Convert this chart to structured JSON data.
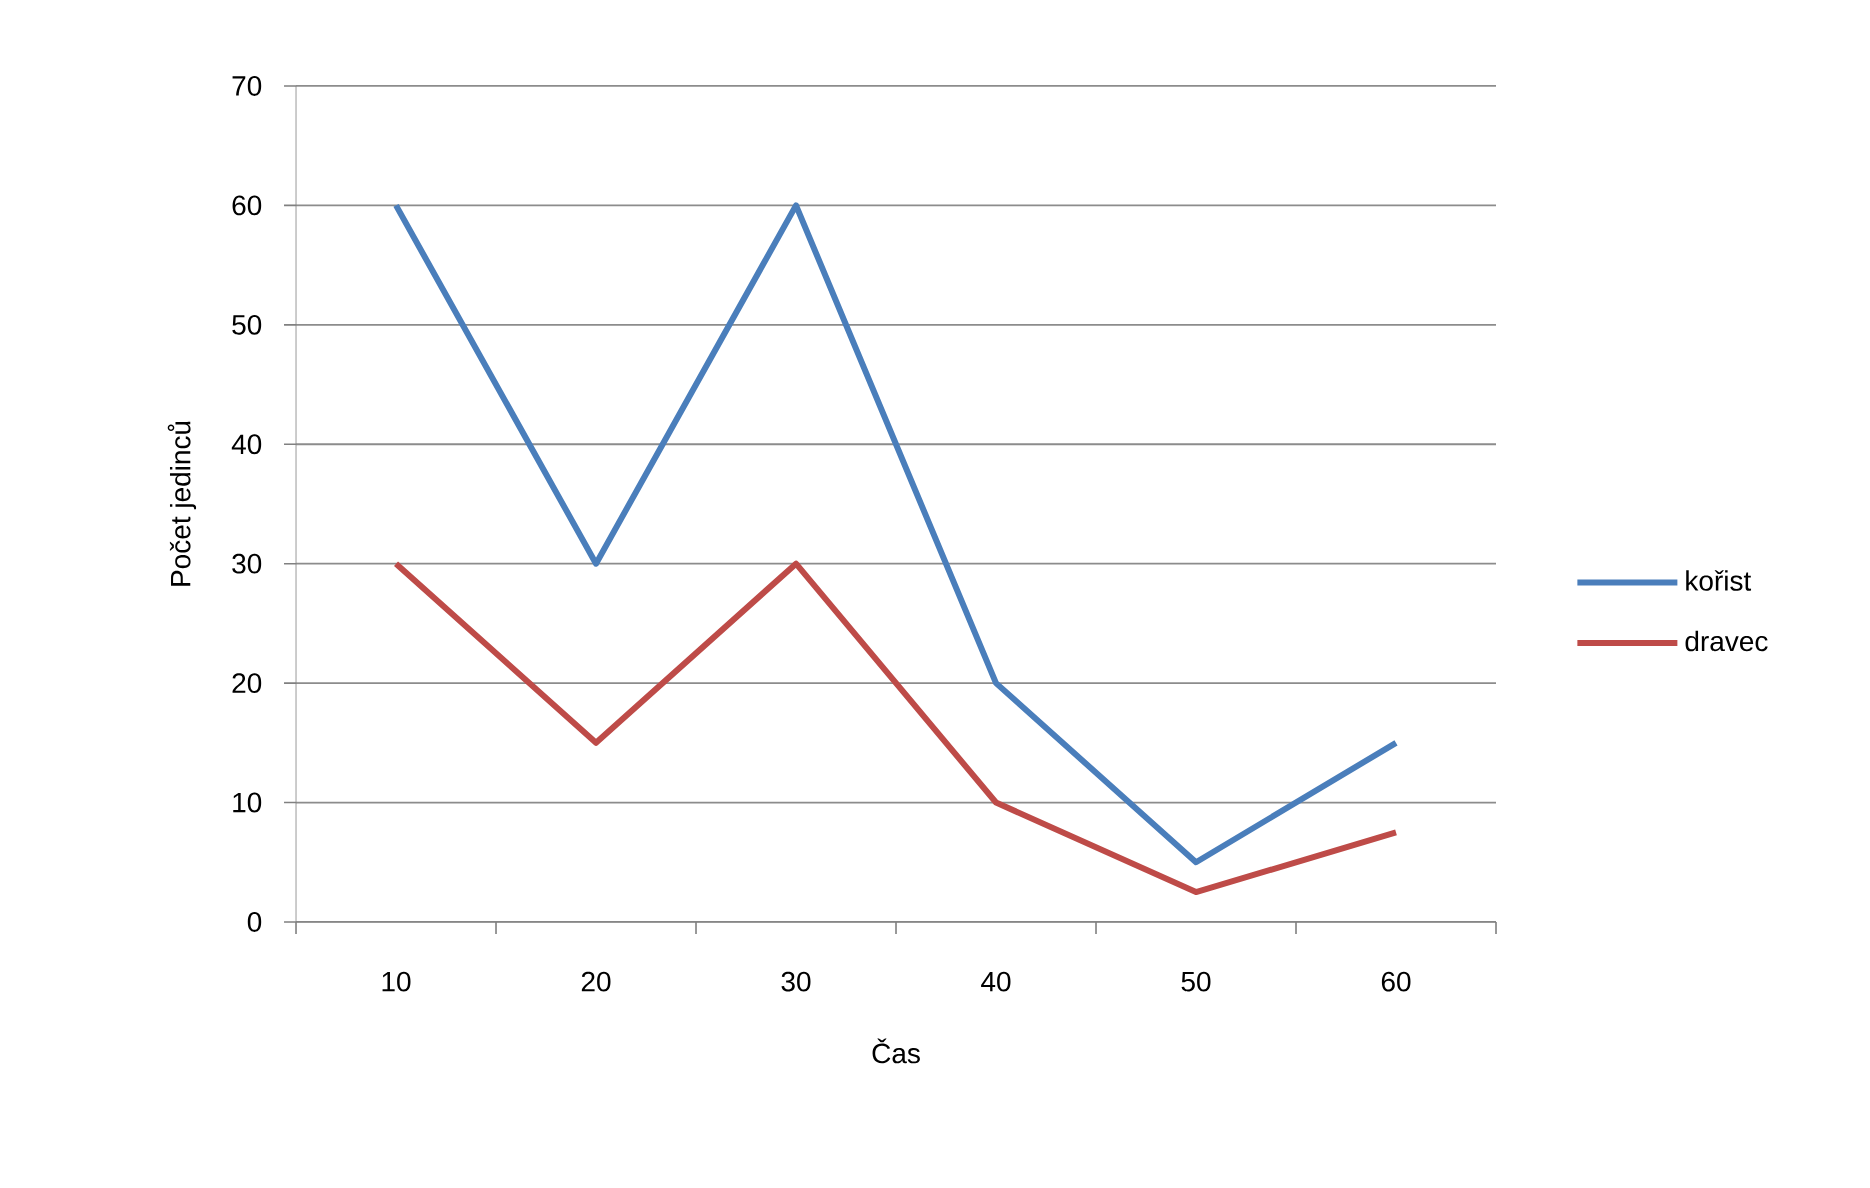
{
  "chart_data": {
    "type": "line",
    "xlabel": "Čas",
    "ylabel": "Počet jedinců",
    "categories": [
      "10",
      "20",
      "30",
      "40",
      "50",
      "60"
    ],
    "series": [
      {
        "name": "kořist",
        "color": "#4a7ebb",
        "values": [
          60,
          30,
          60,
          20,
          5,
          15
        ]
      },
      {
        "name": "dravec",
        "color": "#be4b48",
        "values": [
          30,
          15,
          30,
          10,
          2.5,
          7.5
        ]
      }
    ],
    "ylim": [
      0,
      70
    ],
    "yticks": [
      0,
      10,
      20,
      30,
      40,
      50,
      60,
      70
    ],
    "grid": "y",
    "legend": "right",
    "marker": "none",
    "line_style": "solid"
  }
}
